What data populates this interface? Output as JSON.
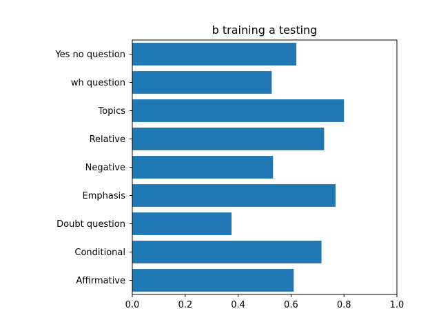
{
  "chart_data": {
    "type": "bar",
    "orientation": "horizontal",
    "title": "b training a testing",
    "xlabel": "",
    "ylabel": "",
    "xlim": [
      0,
      1.0
    ],
    "x_ticks": [
      "0.0",
      "0.2",
      "0.4",
      "0.6",
      "0.8",
      "1.0"
    ],
    "x_tick_values": [
      0,
      0.2,
      0.4,
      0.6,
      0.8,
      1.0
    ],
    "categories": [
      "Affirmative",
      "Conditional",
      "Doubt question",
      "Emphasis",
      "Negative",
      "Relative",
      "Topics",
      "wh question",
      "Yes no question"
    ],
    "values": [
      0.61,
      0.715,
      0.375,
      0.768,
      0.532,
      0.725,
      0.8,
      0.527,
      0.62
    ],
    "bar_color": "#1f77b4",
    "grid": false,
    "legend": "none"
  }
}
